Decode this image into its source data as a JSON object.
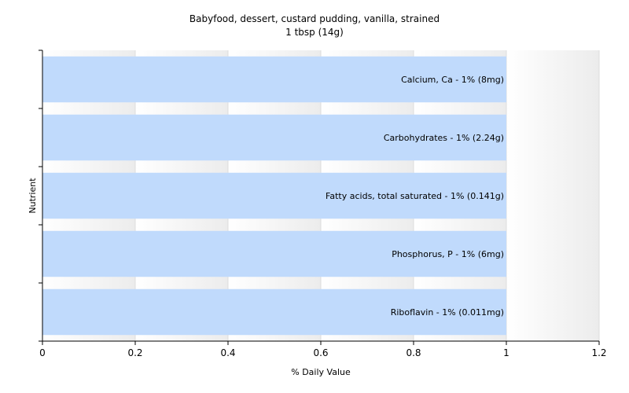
{
  "chart_data": {
    "type": "bar",
    "orientation": "horizontal",
    "title": "Babyfood, dessert, custard pudding, vanilla, strained",
    "subtitle": "1 tbsp (14g)",
    "xlabel": "% Daily Value",
    "ylabel": "Nutrient",
    "xlim": [
      0,
      1.2
    ],
    "x_ticks": [
      "0",
      "0.2",
      "0.4",
      "0.6",
      "0.8",
      "1",
      "1.2"
    ],
    "grid": true,
    "bar_color": "#c0dafc",
    "categories": [
      "Calcium, Ca",
      "Carbohydrates",
      "Fatty acids, total saturated",
      "Phosphorus, P",
      "Riboflavin"
    ],
    "values": [
      1,
      1,
      1,
      1,
      1
    ],
    "data_labels": [
      "Calcium, Ca - 1% (8mg)",
      "Carbohydrates - 1% (2.24g)",
      "Fatty acids, total saturated - 1% (0.141g)",
      "Phosphorus, P - 1% (6mg)",
      "Riboflavin - 1% (0.011mg)"
    ]
  }
}
